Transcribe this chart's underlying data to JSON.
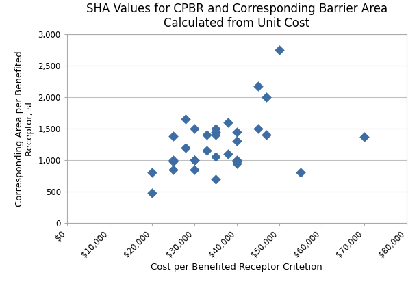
{
  "title_line1": "SHA Values for CPBR and Corresponding Barrier Area",
  "title_line2": "Calculated from Unit Cost",
  "xlabel": "Cost per Benefited Receptor Critetion",
  "ylabel": "Corresponding Area per Benefited\nReceptor, sf",
  "x_data": [
    20000,
    20000,
    25000,
    25000,
    25000,
    25000,
    28000,
    28000,
    30000,
    30000,
    30000,
    30000,
    33000,
    33000,
    35000,
    35000,
    35000,
    35000,
    35000,
    38000,
    38000,
    40000,
    40000,
    40000,
    40000,
    40000,
    45000,
    45000,
    47000,
    47000,
    50000,
    55000,
    70000
  ],
  "y_data": [
    480,
    800,
    850,
    975,
    1000,
    1380,
    1200,
    1650,
    850,
    1000,
    1000,
    1500,
    1150,
    1400,
    700,
    1050,
    1400,
    1450,
    1500,
    1100,
    1600,
    950,
    975,
    1000,
    1300,
    1450,
    1500,
    2175,
    1400,
    2000,
    2750,
    800,
    1375
  ],
  "marker_color": "#3E6DA3",
  "marker_size": 55,
  "xlim": [
    0,
    80000
  ],
  "ylim": [
    0,
    3000
  ],
  "xticks": [
    0,
    10000,
    20000,
    30000,
    40000,
    50000,
    60000,
    70000,
    80000
  ],
  "yticks": [
    0,
    500,
    1000,
    1500,
    2000,
    2500,
    3000
  ],
  "xtick_labels": [
    "$0",
    "$10,000",
    "$20,000",
    "$30,000",
    "$40,000",
    "$50,000",
    "$60,000",
    "$70,000",
    "$80,000"
  ],
  "ytick_labels": [
    "0",
    "500",
    "1,000",
    "1,500",
    "2,000",
    "2,500",
    "3,000"
  ],
  "background_color": "#ffffff",
  "grid_color": "#c0c0c0",
  "title_fontsize": 12,
  "axis_label_fontsize": 9.5,
  "tick_fontsize": 8.5
}
